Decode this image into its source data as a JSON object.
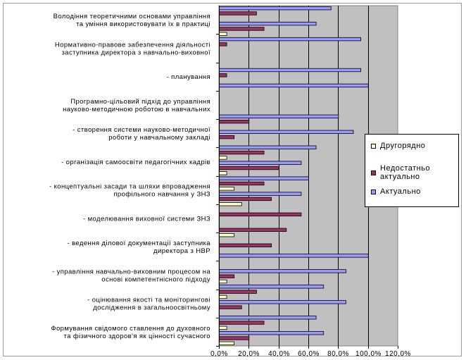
{
  "chart_data": {
    "type": "bar",
    "orientation": "horizontal",
    "xlim": [
      0,
      120
    ],
    "x_tick_labels": [
      "0,0%",
      "20,0%",
      "40,0%",
      "60,0%",
      "80,0%",
      "100,0%",
      "120,0%"
    ],
    "x_ticks": [
      0,
      20,
      40,
      60,
      80,
      100,
      120
    ],
    "grid": true,
    "legend_position": "right",
    "plot_background": "#c0c0c0",
    "category_labels": [
      [
        "Формування свідомого ставлення до духовного",
        "та фізичного здоров'я як цінності сучасного"
      ],
      [
        "- оцінювання якості та моніторингові",
        "дослідження в загальноосвітньому"
      ],
      [
        "- управління навчально-виховним процесом на",
        "основі компетентнісного підходу"
      ],
      [
        "- ведення ділової документації заступника",
        "директора з НВР"
      ],
      [
        "- моделювання виховної системи ЗНЗ"
      ],
      [
        "- концептуальні засади та шляхи впровадження",
        "профільного навчання у ЗНЗ"
      ],
      [
        "- організація самоосвіти педагогічних кадрів"
      ],
      [
        "- створення системи науково-методичної",
        "роботи у навчальному закладі"
      ],
      [
        "Програмно-цільовий підхід до управління",
        "науково-методичною роботою в навчальних"
      ],
      [
        "- планування"
      ],
      [
        "Нормативно-правове забезпечення діяльності",
        "заступника директора з навчально-виховної"
      ],
      [
        "Володіння теоретичними основами управління",
        "та уміння використовувати їх в практиці"
      ]
    ],
    "rows": [
      {
        "series": "Другорядно",
        "value": 10
      },
      {
        "series": "Недостатньо актуально",
        "value": 20
      },
      {
        "series": "Актуально",
        "value": 70
      },
      {
        "series": "Другорядно",
        "value": 5
      },
      {
        "series": "Недостатньо актуально",
        "value": 30
      },
      {
        "series": "Актуально",
        "value": 65
      },
      {
        "series": "Другорядно",
        "value": 0
      },
      {
        "series": "Недостатньо актуально",
        "value": 15
      },
      {
        "series": "Актуально",
        "value": 85
      },
      {
        "series": "Другорядно",
        "value": 5
      },
      {
        "series": "Недостатньо актуально",
        "value": 25
      },
      {
        "series": "Актуально",
        "value": 70
      },
      {
        "series": "Другорядно",
        "value": 5
      },
      {
        "series": "Недостатньо актуально",
        "value": 10
      },
      {
        "series": "Актуально",
        "value": 85
      },
      {
        "series": "Другорядно",
        "value": 0
      },
      {
        "series": "Недостатньо актуально",
        "value": 0
      },
      {
        "series": "Актуально",
        "value": 100
      },
      {
        "series": "Другорядно",
        "value": 0
      },
      {
        "series": "Недостатньо актуально",
        "value": 35
      },
      {
        "series": "Актуально",
        "value": 0
      },
      {
        "series": "Другорядно",
        "value": 10
      },
      {
        "series": "Недостатньо актуально",
        "value": 45
      },
      {
        "series": "Актуально",
        "value": 0
      },
      {
        "series": "Другорядно",
        "value": 0
      },
      {
        "series": "Недостатньо актуально",
        "value": 55
      },
      {
        "series": "Актуально",
        "value": 0
      },
      {
        "series": "Другорядно",
        "value": 15
      },
      {
        "series": "Недостатньо актуально",
        "value": 35
      },
      {
        "series": "Актуально",
        "value": 55
      },
      {
        "series": "Другорядно",
        "value": 10
      },
      {
        "series": "Недостатньо актуально",
        "value": 30
      },
      {
        "series": "Актуально",
        "value": 60
      },
      {
        "series": "Другорядно",
        "value": 5
      },
      {
        "series": "Недостатньо актуально",
        "value": 40
      },
      {
        "series": "Актуально",
        "value": 55
      },
      {
        "series": "Другорядно",
        "value": 5
      },
      {
        "series": "Недостатньо актуально",
        "value": 30
      },
      {
        "series": "Актуально",
        "value": 65
      },
      {
        "series": "Другорядно",
        "value": 0
      },
      {
        "series": "Недостатньо актуально",
        "value": 10
      },
      {
        "series": "Актуально",
        "value": 90
      },
      {
        "series": "Другорядно",
        "value": 0
      },
      {
        "series": "Недостатньо актуально",
        "value": 20
      },
      {
        "series": "Актуально",
        "value": 80
      },
      {
        "series": "Другорядно",
        "value": 0
      },
      {
        "series": "Недостатньо актуально",
        "value": 0
      },
      {
        "series": "Актуально",
        "value": 0
      },
      {
        "series": "Другорядно",
        "value": 0
      },
      {
        "series": "Недостатньо актуально",
        "value": 0
      },
      {
        "series": "Актуально",
        "value": 100
      },
      {
        "series": "Другорядно",
        "value": 0
      },
      {
        "series": "Недостатньо актуально",
        "value": 5
      },
      {
        "series": "Актуально",
        "value": 95
      },
      {
        "series": "Другорядно",
        "value": 0
      },
      {
        "series": "Недостатньо актуально",
        "value": 0
      },
      {
        "series": "Актуально",
        "value": 0
      },
      {
        "series": "Другорядно",
        "value": 0
      },
      {
        "series": "Недостатньо актуально",
        "value": 5
      },
      {
        "series": "Актуально",
        "value": 95
      },
      {
        "series": "Другорядно",
        "value": 5
      },
      {
        "series": "Недостатньо актуально",
        "value": 30
      },
      {
        "series": "Актуально",
        "value": 65
      },
      {
        "series": "Другорядно",
        "value": 0
      },
      {
        "series": "Недостатньо актуально",
        "value": 25
      },
      {
        "series": "Актуально",
        "value": 75
      }
    ],
    "series": [
      {
        "name": "Другорядно",
        "color": "#ffffcc"
      },
      {
        "name": "Недостатньо актуально",
        "color": "#993366"
      },
      {
        "name": "Актуально",
        "color": "#9999ff"
      }
    ]
  },
  "legend": {
    "items": [
      {
        "lines": [
          "Другорядно"
        ],
        "color": "#ffffcc"
      },
      {
        "lines": [
          "Недостатньо",
          "актуально"
        ],
        "color": "#993366"
      },
      {
        "lines": [
          "Актуально"
        ],
        "color": "#9999ff"
      }
    ]
  }
}
